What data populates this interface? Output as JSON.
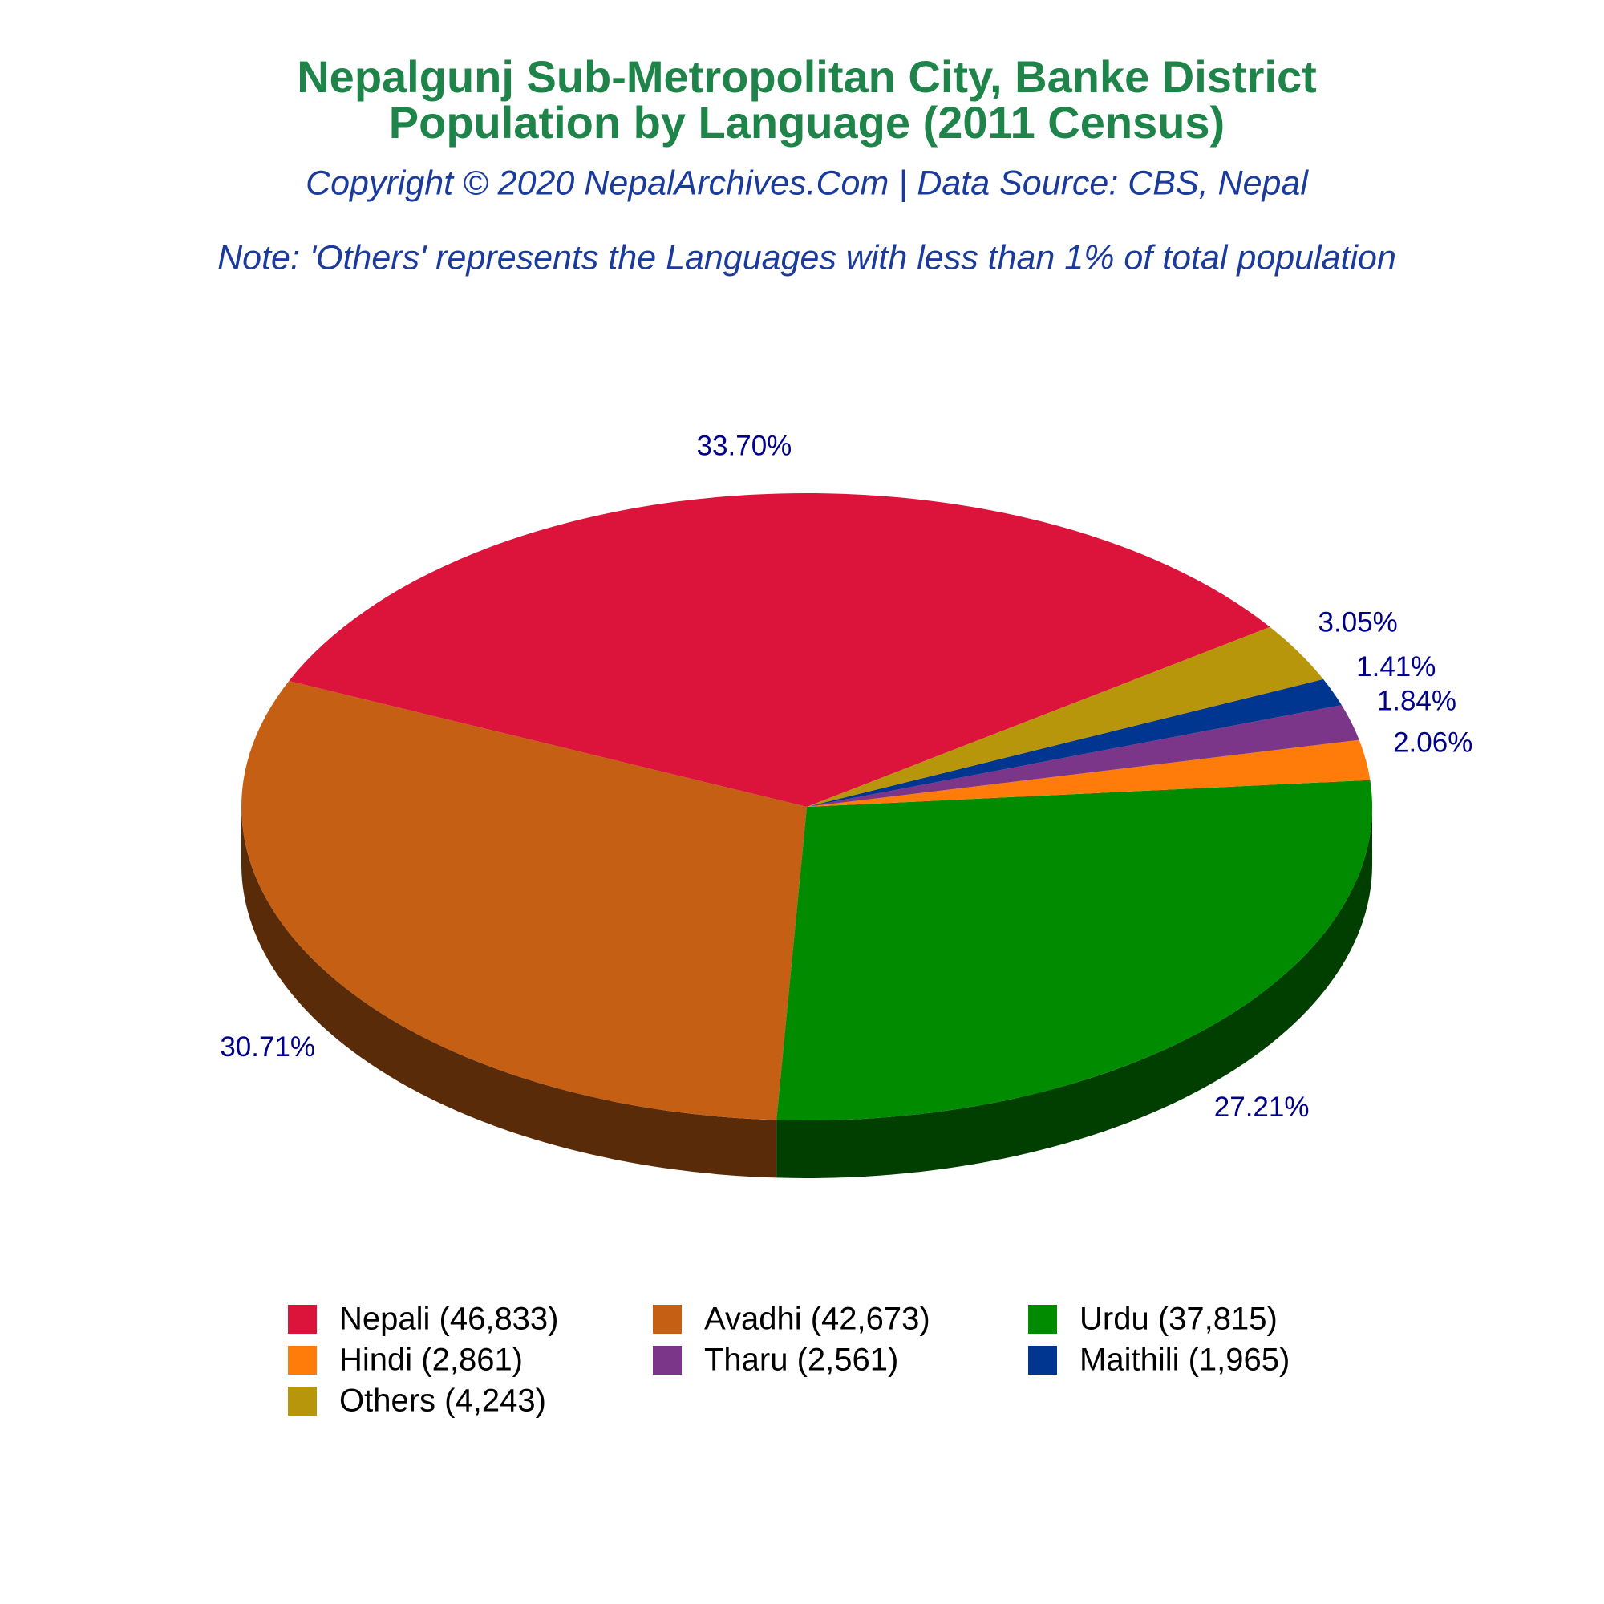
{
  "chart_data": {
    "type": "pie",
    "title": "Nepalgunj Sub-Metropolitan City, Banke District",
    "subtitle": "Population by Language (2011 Census)",
    "copyright": "Copyright © 2020 NepalArchives.Com | Data Source: CBS, Nepal",
    "note": "Note: 'Others' represents the Languages with less than 1% of total population",
    "categories": [
      "Nepali (46,833)",
      "Avadhi (42,673)",
      "Urdu (37,815)",
      "Hindi (2,861)",
      "Tharu (2,561)",
      "Maithili (1,965)",
      "Others (4,243)"
    ],
    "values": [
      33.7,
      30.71,
      27.21,
      2.06,
      1.84,
      1.41,
      3.05
    ],
    "value_labels": [
      "33.70%",
      "30.71%",
      "27.21%",
      "2.06%",
      "1.84%",
      "1.41%",
      "3.05%"
    ],
    "colors": [
      "#dc143c",
      "#c55f14",
      "#008b00",
      "#ff7c0a",
      "#7b368a",
      "#00368f",
      "#b8960b"
    ],
    "legend": "bottom"
  }
}
